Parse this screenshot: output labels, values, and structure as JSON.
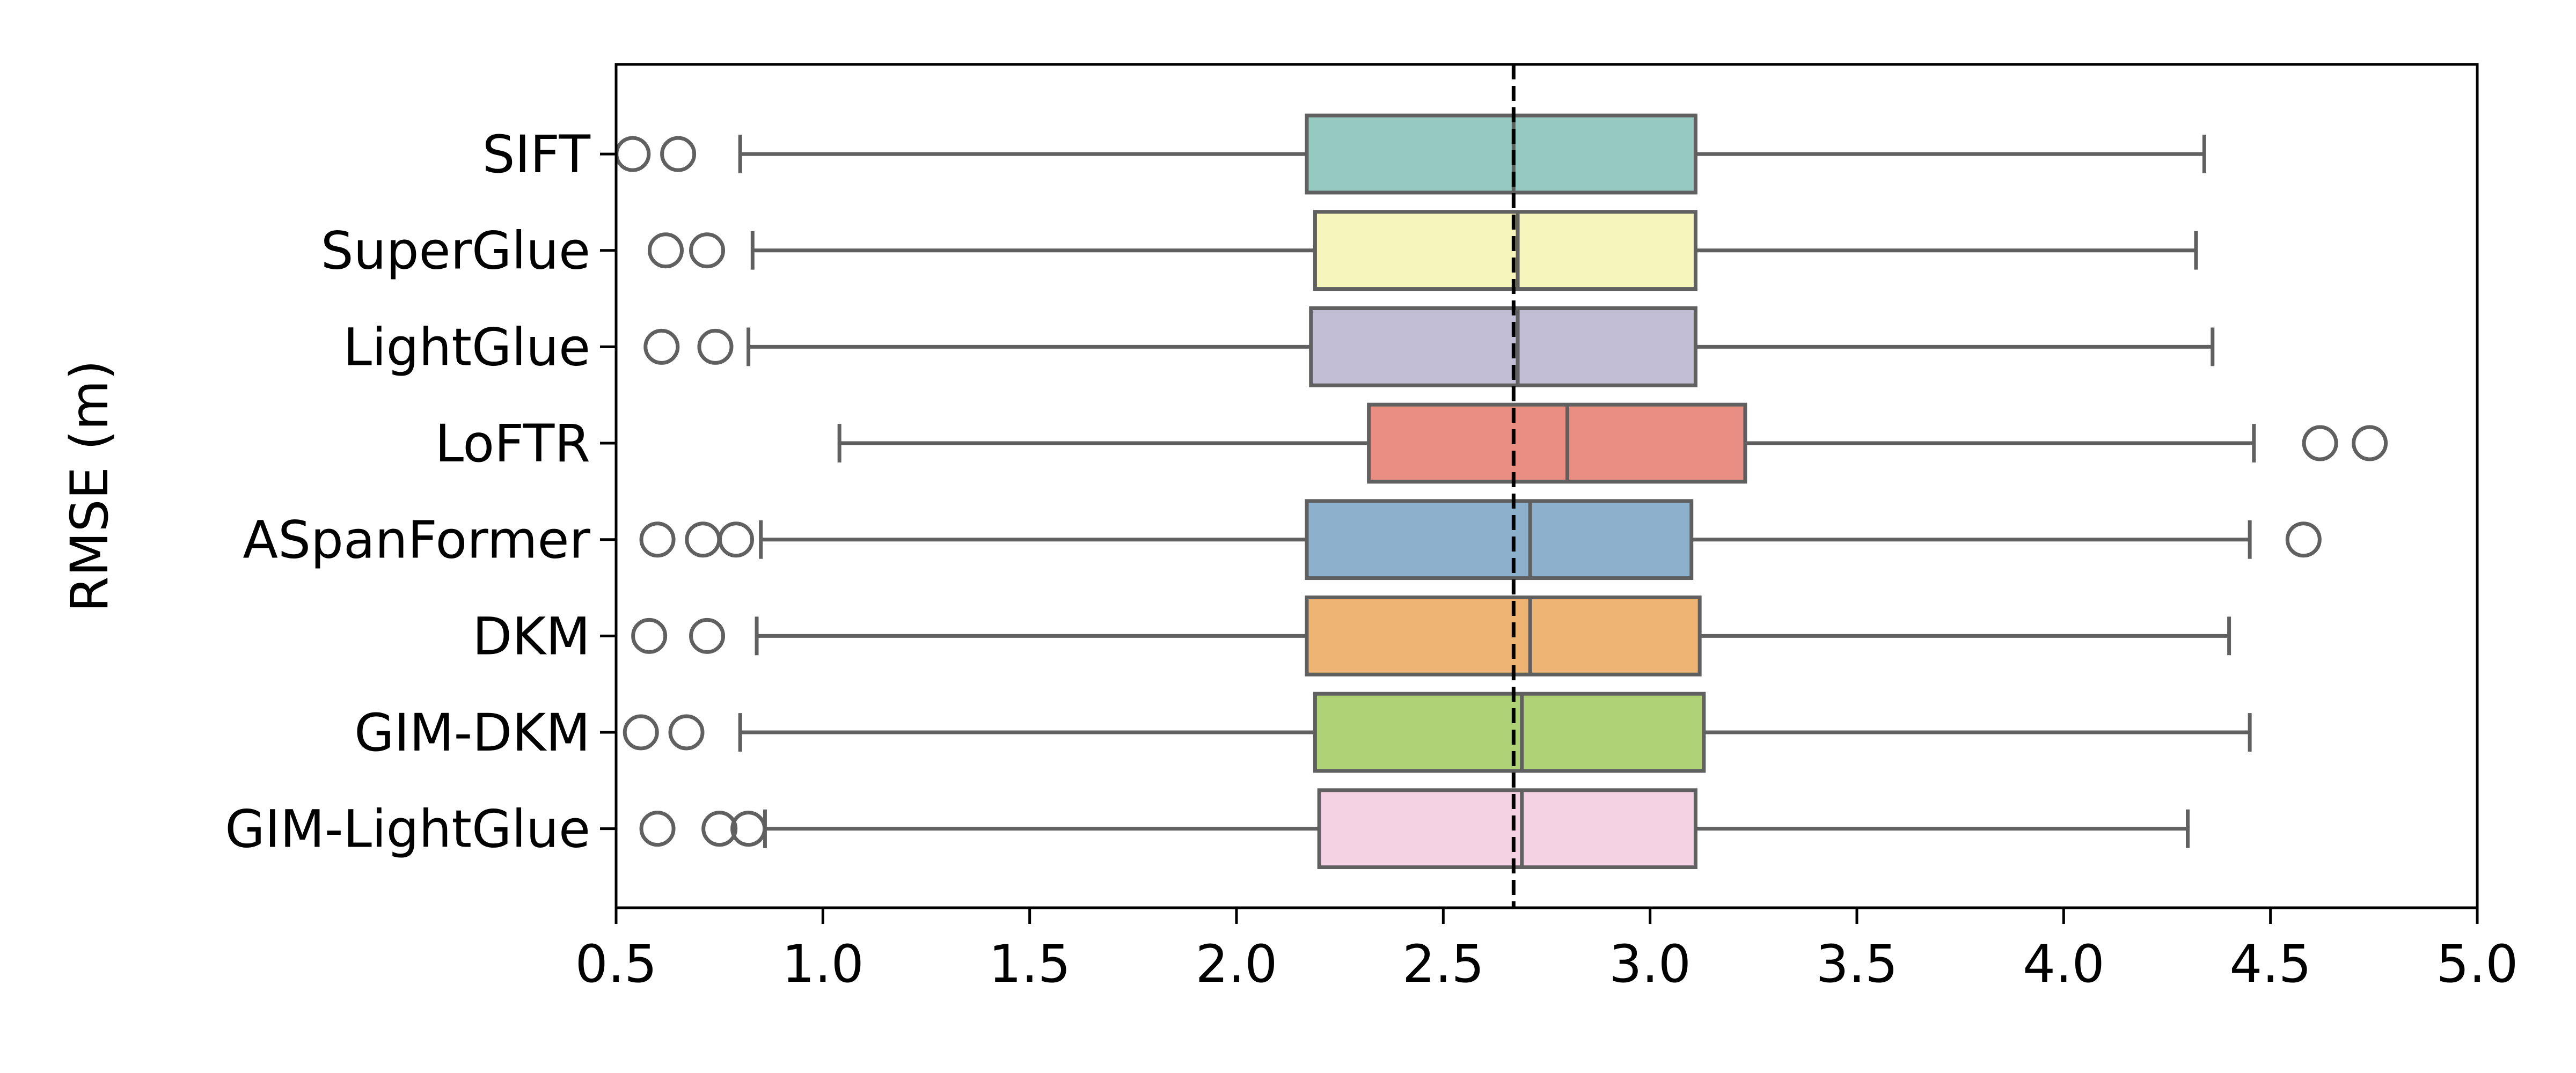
{
  "chart_data": {
    "type": "boxplot",
    "orientation": "horizontal",
    "title": "",
    "xlabel": "",
    "ylabel": "RMSE (m)",
    "xlim": [
      0.5,
      5.0
    ],
    "xticks": [
      "0.5",
      "1.0",
      "1.5",
      "2.0",
      "2.5",
      "3.0",
      "3.5",
      "4.0",
      "4.5",
      "5.0"
    ],
    "reference_line": {
      "x": 2.67,
      "style": "dashed",
      "color": "#000000"
    },
    "grid": false,
    "legend": "none",
    "box_edge_color": "#606060",
    "categories": [
      "SIFT",
      "SuperGlue",
      "LightGlue",
      "LoFTR",
      "ASpanFormer",
      "DKM",
      "GIM-DKM",
      "GIM-LightGlue"
    ],
    "boxes": [
      {
        "name": "SIFT",
        "whisker_low": 0.8,
        "q1": 2.17,
        "median": 2.67,
        "q3": 3.11,
        "whisker_high": 4.34,
        "outliers": [
          0.54,
          0.65
        ],
        "color": "#96cac1"
      },
      {
        "name": "SuperGlue",
        "whisker_low": 0.83,
        "q1": 2.19,
        "median": 2.68,
        "q3": 3.11,
        "whisker_high": 4.32,
        "outliers": [
          0.62,
          0.72
        ],
        "color": "#f6f6bc"
      },
      {
        "name": "LightGlue",
        "whisker_low": 0.82,
        "q1": 2.18,
        "median": 2.68,
        "q3": 3.11,
        "whisker_high": 4.36,
        "outliers": [
          0.61,
          0.74
        ],
        "color": "#c1bed6"
      },
      {
        "name": "LoFTR",
        "whisker_low": 1.04,
        "q1": 2.32,
        "median": 2.8,
        "q3": 3.23,
        "whisker_high": 4.46,
        "outliers": [
          4.62,
          4.74
        ],
        "color": "#ea8e83"
      },
      {
        "name": "ASpanFormer",
        "whisker_low": 0.85,
        "q1": 2.17,
        "median": 2.71,
        "q3": 3.1,
        "whisker_high": 4.45,
        "outliers": [
          0.6,
          0.71,
          0.79,
          4.58
        ],
        "color": "#8db1cd"
      },
      {
        "name": "DKM",
        "whisker_low": 0.84,
        "q1": 2.17,
        "median": 2.71,
        "q3": 3.12,
        "whisker_high": 4.4,
        "outliers": [
          0.58,
          0.72
        ],
        "color": "#eeb473"
      },
      {
        "name": "GIM-DKM",
        "whisker_low": 0.8,
        "q1": 2.19,
        "median": 2.69,
        "q3": 3.13,
        "whisker_high": 4.45,
        "outliers": [
          0.56,
          0.67
        ],
        "color": "#b0d276"
      },
      {
        "name": "GIM-LightGlue",
        "whisker_low": 0.86,
        "q1": 2.2,
        "median": 2.69,
        "q3": 3.11,
        "whisker_high": 4.3,
        "outliers": [
          0.6,
          0.75,
          0.82
        ],
        "color": "#f5d1e4"
      }
    ]
  }
}
